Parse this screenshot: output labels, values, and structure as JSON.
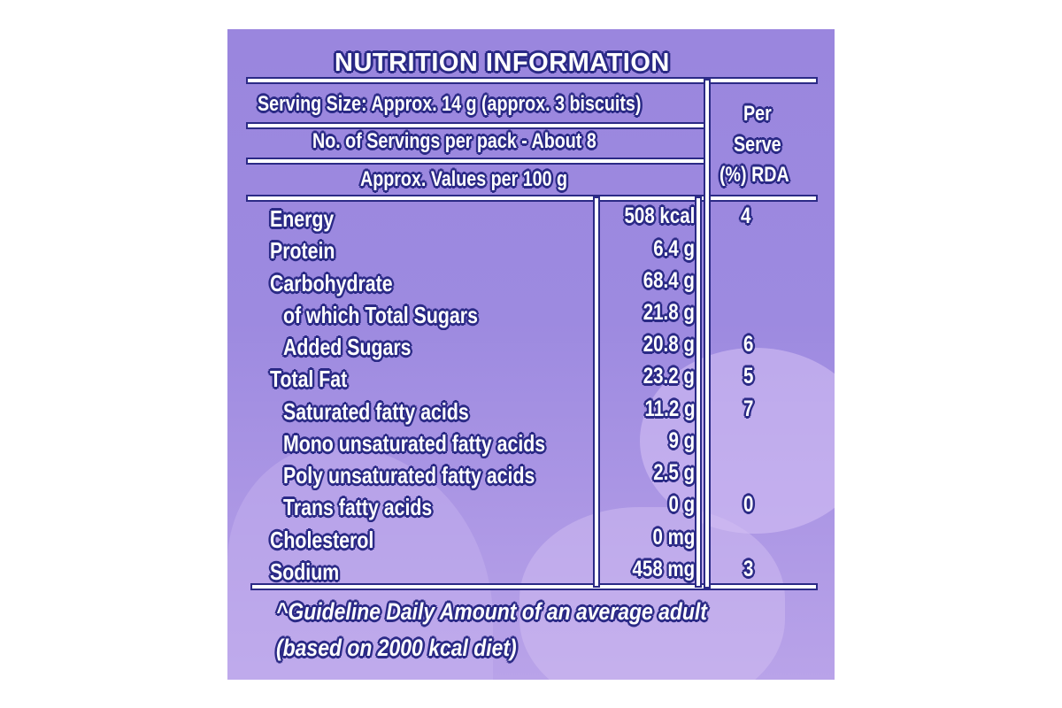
{
  "title": "NUTRITION INFORMATION",
  "header": {
    "serving_size": "Serving Size: Approx. 14 g (approx. 3 biscuits)",
    "servings_per_pack": "No. of Servings per pack - About 8",
    "values_basis": "Approx. Values per 100 g",
    "rda_line1": "Per",
    "rda_line2": "Serve",
    "rda_line3": "(%) RDA"
  },
  "rows": [
    {
      "label": "Energy",
      "value": "508 kcal",
      "rda": "4"
    },
    {
      "label": "Protein",
      "value": "6.4 g",
      "rda": ""
    },
    {
      "label": "Carbohydrate",
      "value": "68.4 g",
      "rda": ""
    },
    {
      "label": "of which Total Sugars",
      "value": "21.8 g",
      "rda": ""
    },
    {
      "label": "Added Sugars",
      "value": "20.8 g",
      "rda": "6"
    },
    {
      "label": "Total Fat",
      "value": "23.2 g",
      "rda": "5"
    },
    {
      "label": "Saturated fatty acids",
      "value": "11.2 g",
      "rda": "7"
    },
    {
      "label": "Mono unsaturated fatty acids",
      "value": "9 g",
      "rda": ""
    },
    {
      "label": "Poly unsaturated fatty acids",
      "value": "2.5 g",
      "rda": ""
    },
    {
      "label": "Trans fatty acids",
      "value": "0 g",
      "rda": "0"
    },
    {
      "label": "Cholesterol",
      "value": "0 mg",
      "rda": ""
    },
    {
      "label": "Sodium",
      "value": "458 mg",
      "rda": "3"
    }
  ],
  "footnote": {
    "line1": "^Guideline Daily Amount of an average adult",
    "line2": "(based on 2000 kcal diet)"
  }
}
